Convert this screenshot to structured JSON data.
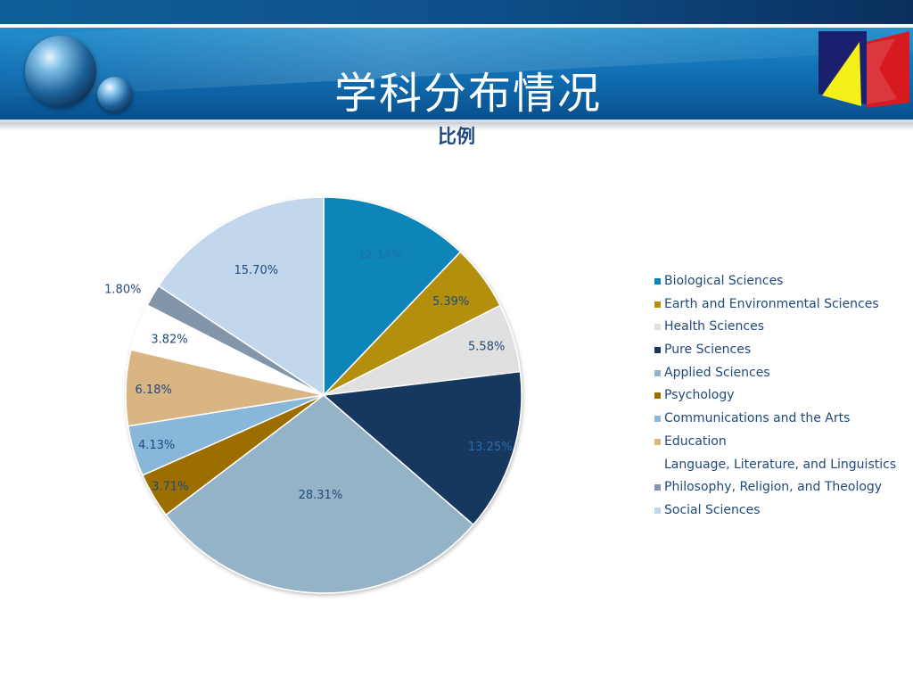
{
  "slide": {
    "title": "学科分布情况"
  },
  "icons": {
    "decoration": [
      "orb-large-icon",
      "orb-small-icon"
    ],
    "logo": "kd-logo-icon"
  },
  "chart_data": {
    "type": "pie",
    "title": "比例",
    "categories": [
      "Biological Sciences",
      "Earth and Environmental Sciences",
      "Health Sciences",
      "Pure Sciences",
      "Applied Sciences",
      "Psychology",
      "Communications and the Arts",
      "Education",
      "Language, Literature, and Linguistics",
      "Philosophy, Religion, and Theology",
      "Social Sciences"
    ],
    "values": [
      12.14,
      5.39,
      5.58,
      13.25,
      28.31,
      3.71,
      4.13,
      6.18,
      3.82,
      1.8,
      15.7
    ],
    "labels": [
      "12.14%",
      "5.39%",
      "5.58%",
      "13.25%",
      "28.31%",
      "3.71%",
      "4.13%",
      "6.18%",
      "3.82%",
      "1.80%",
      "15.70%"
    ],
    "colors": [
      "#0a85b9",
      "#b38f0a",
      "#e0e0e0",
      "#17375e",
      "#95b3c7",
      "#9c6e06",
      "#88b7d9",
      "#d8b582",
      "#ffffff",
      "#8395a8",
      "#c3d7ec"
    ],
    "label_colors": [
      "#1e6fa6",
      "#1f497d",
      "#1f497d",
      "#2c6ca6",
      "#1f497d",
      "#1f497d",
      "#1f497d",
      "#1f497d",
      "#1f497d",
      "#1f497d",
      "#1f497d"
    ],
    "legend_position": "right",
    "start_angle": "12 o'clock",
    "direction": "clockwise"
  }
}
